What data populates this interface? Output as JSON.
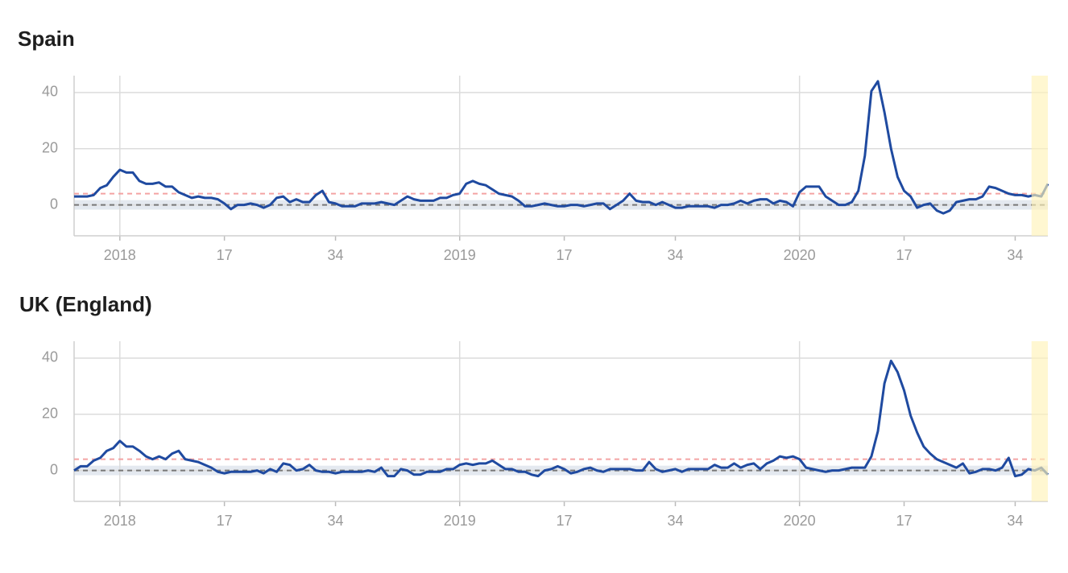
{
  "chart_data": [
    {
      "type": "line",
      "title": "Spain",
      "categories": [
        null,
        null,
        null,
        null,
        null,
        null,
        null,
        "2018",
        null,
        null,
        null,
        null,
        null,
        null,
        null,
        null,
        null,
        null,
        null,
        null,
        null,
        null,
        null,
        "17",
        null,
        null,
        null,
        null,
        null,
        null,
        null,
        null,
        null,
        null,
        null,
        null,
        null,
        null,
        null,
        null,
        "34",
        null,
        null,
        null,
        null,
        null,
        null,
        null,
        null,
        null,
        null,
        null,
        null,
        null,
        null,
        null,
        null,
        null,
        null,
        "2019",
        null,
        null,
        null,
        null,
        null,
        null,
        null,
        null,
        null,
        null,
        null,
        null,
        null,
        null,
        null,
        "17",
        null,
        null,
        null,
        null,
        null,
        null,
        null,
        null,
        null,
        null,
        null,
        null,
        null,
        null,
        null,
        null,
        "34",
        null,
        null,
        null,
        null,
        null,
        null,
        null,
        null,
        null,
        null,
        null,
        null,
        null,
        null,
        null,
        null,
        null,
        null,
        "2020",
        null,
        null,
        null,
        null,
        null,
        null,
        null,
        null,
        null,
        null,
        null,
        null,
        null,
        null,
        null,
        "17",
        null,
        null,
        null,
        null,
        null,
        null,
        null,
        null,
        null,
        null,
        null,
        null,
        null,
        null,
        null,
        null,
        "34",
        null,
        null,
        null,
        null,
        null
      ],
      "series": [
        {
          "color": "#1f4aa0",
          "values": [
            3,
            3,
            3,
            3.5,
            6,
            7,
            10,
            12.5,
            11.5,
            11.5,
            8.5,
            7.5,
            7.5,
            8,
            6.5,
            6.5,
            4.5,
            3.5,
            2.5,
            3,
            2.5,
            2.5,
            2,
            0.5,
            -1.5,
            0,
            0,
            0.5,
            0,
            -1,
            0,
            2.5,
            3,
            1,
            2,
            1,
            1,
            3.5,
            5,
            1,
            0.5,
            -0.5,
            -0.5,
            -0.5,
            0.5,
            0.5,
            0.5,
            1,
            0.5,
            0,
            1.5,
            3,
            2,
            1.5,
            1.5,
            1.5,
            2.5,
            2.5,
            3.5,
            4,
            7.5,
            8.5,
            7.5,
            7,
            5.5,
            4,
            3.5,
            3,
            1.5,
            -0.5,
            -0.5,
            0,
            0.5,
            0,
            -0.5,
            -0.5,
            0,
            0,
            -0.5,
            0,
            0.5,
            0.5,
            -1.5,
            0,
            1.5,
            4,
            1.5,
            1,
            1,
            0,
            1,
            0,
            -1,
            -1,
            -0.5,
            -0.5,
            -0.5,
            -0.5,
            -1,
            0,
            0,
            0.5,
            1.5,
            0.5,
            1.5,
            2,
            2,
            0.5,
            1.5,
            1,
            -0.5,
            4.5,
            6.5,
            6.5,
            6.5,
            3,
            1.5,
            0,
            0,
            1,
            5,
            17.5,
            40.5,
            44,
            33,
            20,
            10,
            5,
            3,
            -1,
            0,
            0.5,
            -2,
            -3,
            -2,
            1,
            1.5,
            2,
            2,
            3,
            6.5,
            6,
            5,
            4,
            3.5,
            3.5,
            3,
            3.5,
            3,
            7.5
          ]
        }
      ],
      "ylim": [
        -11,
        46
      ],
      "yticks": [
        0,
        20,
        40
      ],
      "grid": true,
      "threshold": 4,
      "baseline": 0,
      "baseline_band": [
        -1.7,
        1.7
      ]
    },
    {
      "type": "line",
      "title": "UK (England)",
      "categories": [
        null,
        null,
        null,
        null,
        null,
        null,
        null,
        "2018",
        null,
        null,
        null,
        null,
        null,
        null,
        null,
        null,
        null,
        null,
        null,
        null,
        null,
        null,
        null,
        "17",
        null,
        null,
        null,
        null,
        null,
        null,
        null,
        null,
        null,
        null,
        null,
        null,
        null,
        null,
        null,
        null,
        "34",
        null,
        null,
        null,
        null,
        null,
        null,
        null,
        null,
        null,
        null,
        null,
        null,
        null,
        null,
        null,
        null,
        null,
        null,
        "2019",
        null,
        null,
        null,
        null,
        null,
        null,
        null,
        null,
        null,
        null,
        null,
        null,
        null,
        null,
        null,
        "17",
        null,
        null,
        null,
        null,
        null,
        null,
        null,
        null,
        null,
        null,
        null,
        null,
        null,
        null,
        null,
        null,
        "34",
        null,
        null,
        null,
        null,
        null,
        null,
        null,
        null,
        null,
        null,
        null,
        null,
        null,
        null,
        null,
        null,
        null,
        null,
        "2020",
        null,
        null,
        null,
        null,
        null,
        null,
        null,
        null,
        null,
        null,
        null,
        null,
        null,
        null,
        null,
        "17",
        null,
        null,
        null,
        null,
        null,
        null,
        null,
        null,
        null,
        null,
        null,
        null,
        null,
        null,
        null,
        null,
        "34",
        null,
        null,
        null,
        null,
        null
      ],
      "series": [
        {
          "color": "#1f4aa0",
          "values": [
            0,
            1.5,
            1.5,
            3.5,
            4.5,
            7,
            8,
            10.5,
            8.5,
            8.5,
            7,
            5,
            4,
            5,
            4,
            6,
            7,
            4,
            3.5,
            3,
            2,
            1,
            -0.5,
            -1,
            -0.5,
            -0.5,
            -0.5,
            -0.5,
            0,
            -1,
            0.5,
            -0.5,
            2.5,
            2,
            0,
            0.5,
            2,
            0,
            -0.5,
            -0.5,
            -1,
            -0.5,
            -0.5,
            -0.5,
            -0.5,
            0,
            -0.5,
            1,
            -2,
            -2,
            0.5,
            0,
            -1.5,
            -1.5,
            -0.5,
            -0.5,
            -0.5,
            0.5,
            0.5,
            2,
            2.5,
            2,
            2.5,
            2.5,
            3.5,
            2,
            0.5,
            0.5,
            -0.5,
            -0.5,
            -1.5,
            -2,
            0,
            0.5,
            1.5,
            0.5,
            -1,
            -0.5,
            0.5,
            1,
            0,
            -0.5,
            0.5,
            0.5,
            0.5,
            0.5,
            0,
            0,
            3,
            0.5,
            -0.5,
            0,
            0.5,
            -0.5,
            0.5,
            0.5,
            0.5,
            0.5,
            2,
            1,
            1,
            2.5,
            1,
            2,
            2.5,
            0.5,
            2.5,
            3.5,
            5,
            4.5,
            5,
            4,
            1,
            0.5,
            0,
            -0.5,
            0,
            0,
            0.5,
            1,
            1,
            1,
            5,
            14,
            31,
            39,
            35,
            28.5,
            19.5,
            13.5,
            8.5,
            6,
            4,
            3,
            2,
            1,
            2.5,
            -1,
            -0.5,
            0.5,
            0.5,
            0,
            1,
            4.5,
            -2,
            -1.5,
            0.5,
            0,
            1,
            -1.5
          ]
        }
      ],
      "ylim": [
        -11,
        46
      ],
      "yticks": [
        0,
        20,
        40
      ],
      "grid": true,
      "threshold": 4,
      "baseline": 0,
      "baseline_band": [
        -1.7,
        1.7
      ]
    }
  ]
}
